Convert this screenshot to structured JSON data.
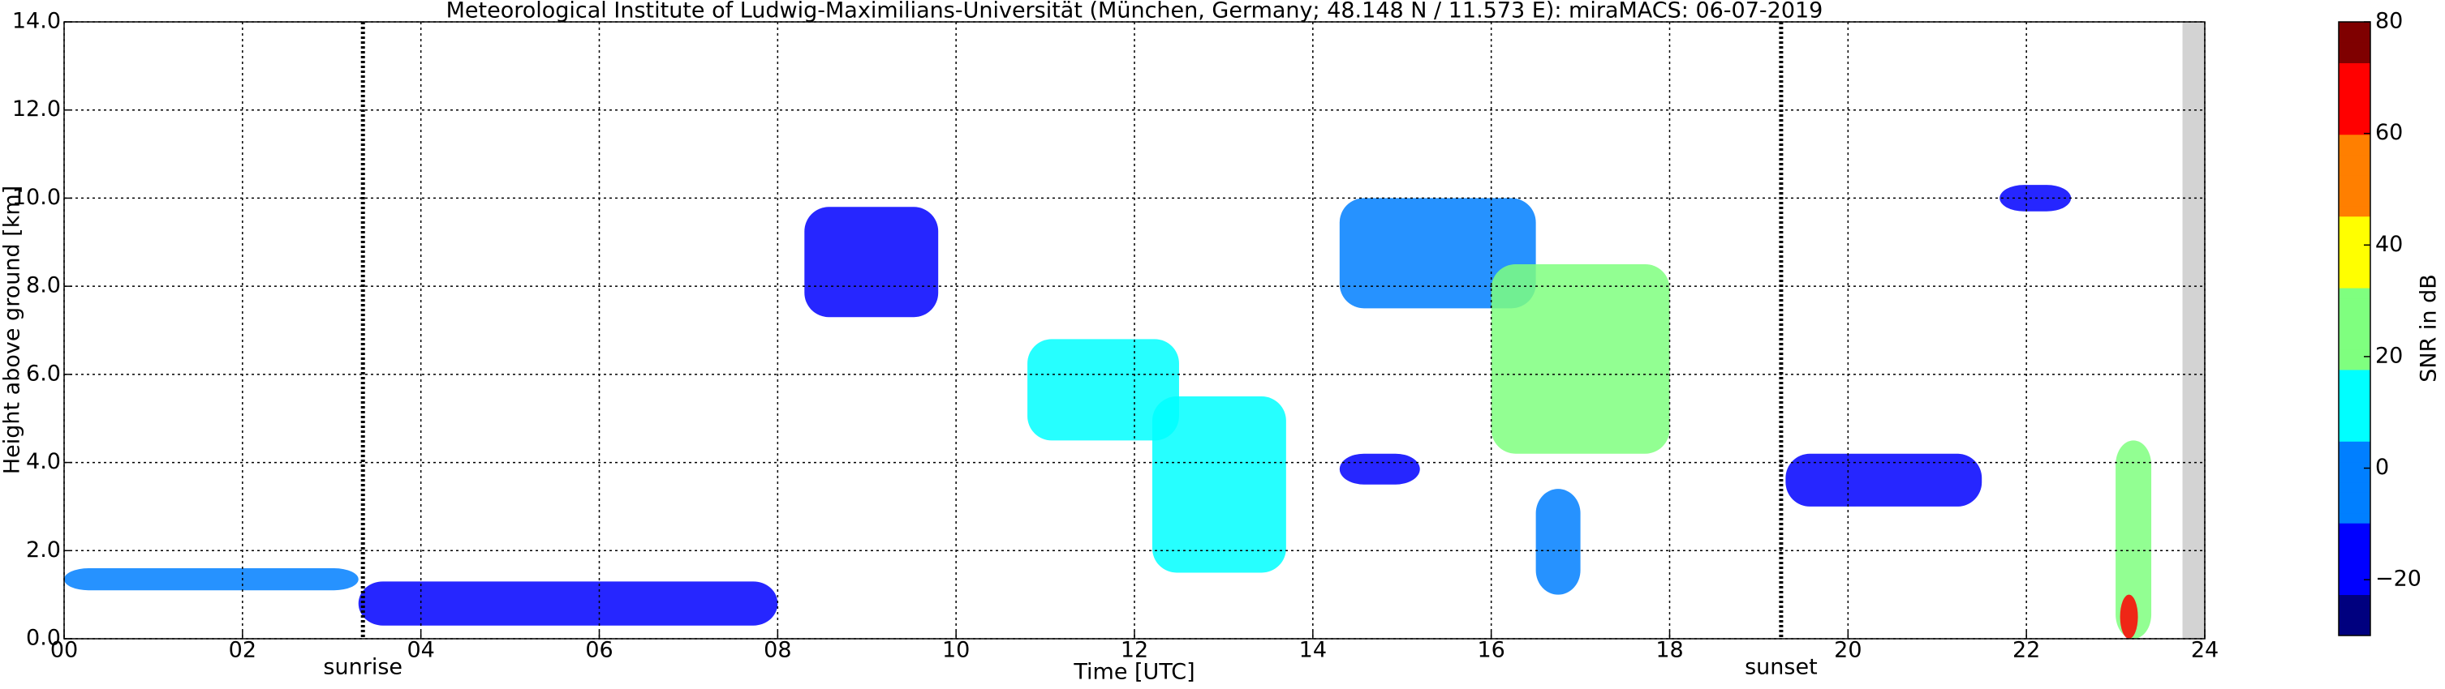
{
  "chart_data": {
    "type": "time-height",
    "title": "Meteorological Institute of Ludwig-Maximilians-Universität (München, Germany; 48.148 N / 11.573 E):    miraMACS: 06-07-2019",
    "x_label": "Time [UTC]",
    "y_label": "Height above ground [km]",
    "xlim": [
      0,
      24
    ],
    "xticks": [
      {
        "value": 0,
        "label": "00"
      },
      {
        "value": 2,
        "label": "02"
      },
      {
        "value": 4,
        "label": "04"
      },
      {
        "value": 6,
        "label": "06"
      },
      {
        "value": 8,
        "label": "08"
      },
      10,
      12,
      14,
      16,
      18,
      20,
      22,
      24
    ],
    "ylim": [
      0,
      14
    ],
    "yticks": [
      {
        "value": 0,
        "label": "0.0"
      },
      {
        "value": 2,
        "label": "2.0"
      },
      {
        "value": 4,
        "label": "4.0"
      },
      {
        "value": 6,
        "label": "6.0"
      },
      {
        "value": 8,
        "label": "8.0"
      },
      {
        "value": 10,
        "label": "10.0"
      },
      {
        "value": 12,
        "label": "12.0"
      },
      {
        "value": 14,
        "label": "14.0"
      }
    ],
    "grid": true,
    "annotations": [
      {
        "text": "sunrise",
        "x": 3.35
      },
      {
        "text": "sunset",
        "x": 19.25
      }
    ],
    "no_data": [
      23.75,
      24
    ],
    "no_data_color": "#d3d3d3",
    "colorbar": {
      "label": "SNR in dB",
      "lim": [
        -30,
        80
      ],
      "ticks": [
        {
          "value": -20,
          "label": "−20"
        },
        0,
        20,
        40,
        60,
        80
      ],
      "colors": [
        "#00007f",
        "#0000ff",
        "#007fff",
        "#00ffff",
        "#7fff7f",
        "#ffff00",
        "#ff7f00",
        "#ff0000",
        "#7f0000"
      ]
    },
    "echoes": [
      {
        "time": [
          0.0,
          3.3
        ],
        "height": [
          1.1,
          1.6
        ],
        "snr": -5
      },
      {
        "time": [
          3.3,
          8.0
        ],
        "height": [
          0.3,
          1.3
        ],
        "snr": -15
      },
      {
        "time": [
          8.3,
          9.8
        ],
        "height": [
          7.3,
          9.8
        ],
        "snr": -10
      },
      {
        "time": [
          10.8,
          12.5
        ],
        "height": [
          4.5,
          6.8
        ],
        "snr": 5
      },
      {
        "time": [
          12.2,
          13.7
        ],
        "height": [
          1.5,
          5.5
        ],
        "snr": 10
      },
      {
        "time": [
          14.3,
          16.5
        ],
        "height": [
          7.5,
          10.0
        ],
        "snr": 0
      },
      {
        "time": [
          16.0,
          18.0
        ],
        "height": [
          4.2,
          8.5
        ],
        "snr": 20
      },
      {
        "time": [
          14.3,
          15.2
        ],
        "height": [
          3.5,
          4.2
        ],
        "snr": -10
      },
      {
        "time": [
          16.5,
          17.0
        ],
        "height": [
          1.0,
          3.4
        ],
        "snr": -5
      },
      {
        "time": [
          19.3,
          21.5
        ],
        "height": [
          3.0,
          4.2
        ],
        "snr": -10
      },
      {
        "time": [
          21.7,
          22.5
        ],
        "height": [
          9.7,
          10.3
        ],
        "snr": -15
      },
      {
        "time": [
          23.0,
          23.4
        ],
        "height": [
          0.0,
          4.5
        ],
        "snr": 20
      },
      {
        "time": [
          23.05,
          23.25
        ],
        "height": [
          0.0,
          1.0
        ],
        "snr": 70
      }
    ]
  }
}
